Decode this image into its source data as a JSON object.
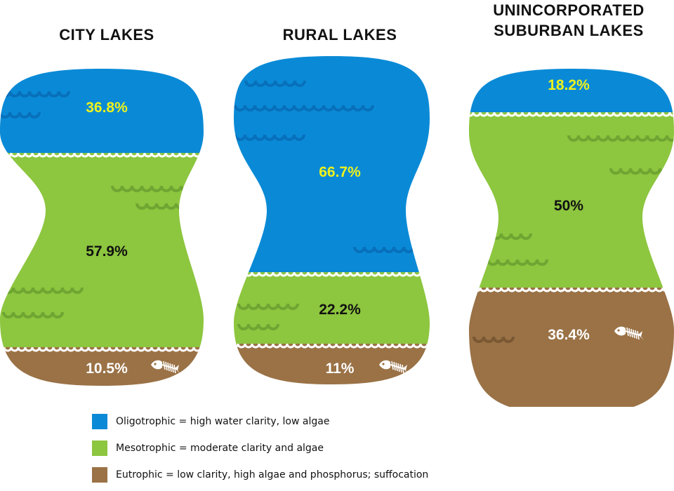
{
  "chart_data": {
    "type": "bar",
    "title": "",
    "categories": [
      "CITY LAKES",
      "RURAL LAKES",
      "UNINCORPORATED SUBURBAN LAKES"
    ],
    "series": [
      {
        "name": "Oligotrophic",
        "values": [
          36.8,
          66.7,
          18.2
        ],
        "labels": [
          "36.8%",
          "66.7%",
          "18.2%"
        ],
        "color": "#0a8ad6",
        "label_color": "#eef21c"
      },
      {
        "name": "Mesotrophic",
        "values": [
          57.9,
          22.2,
          50
        ],
        "labels": [
          "57.9%",
          "22.2%",
          "50%"
        ],
        "color": "#8dc63f",
        "label_color": "#111111"
      },
      {
        "name": "Eutrophic",
        "values": [
          10.5,
          11,
          36.4
        ],
        "labels": [
          "10.5%",
          "11%",
          "36.4%"
        ],
        "color": "#9a7246",
        "label_color": "#ffffff"
      }
    ],
    "titles": [
      [
        "CITY LAKES"
      ],
      [
        "RURAL LAKES"
      ],
      [
        "UNINCORPORATED",
        "SUBURBAN LAKES"
      ]
    ],
    "legend": {
      "placement": "bottom",
      "items": [
        {
          "text": "Oligotrophic = high water clarity, low algae",
          "color": "#0a8ad6"
        },
        {
          "text": "Mesotrophic = moderate clarity and algae",
          "color": "#8dc63f"
        },
        {
          "text": "Eutrophic = low clarity, high algae and phosphorus; suffocation",
          "color": "#9a7246"
        }
      ]
    },
    "icons": [
      "fish-skeleton-icon"
    ]
  }
}
